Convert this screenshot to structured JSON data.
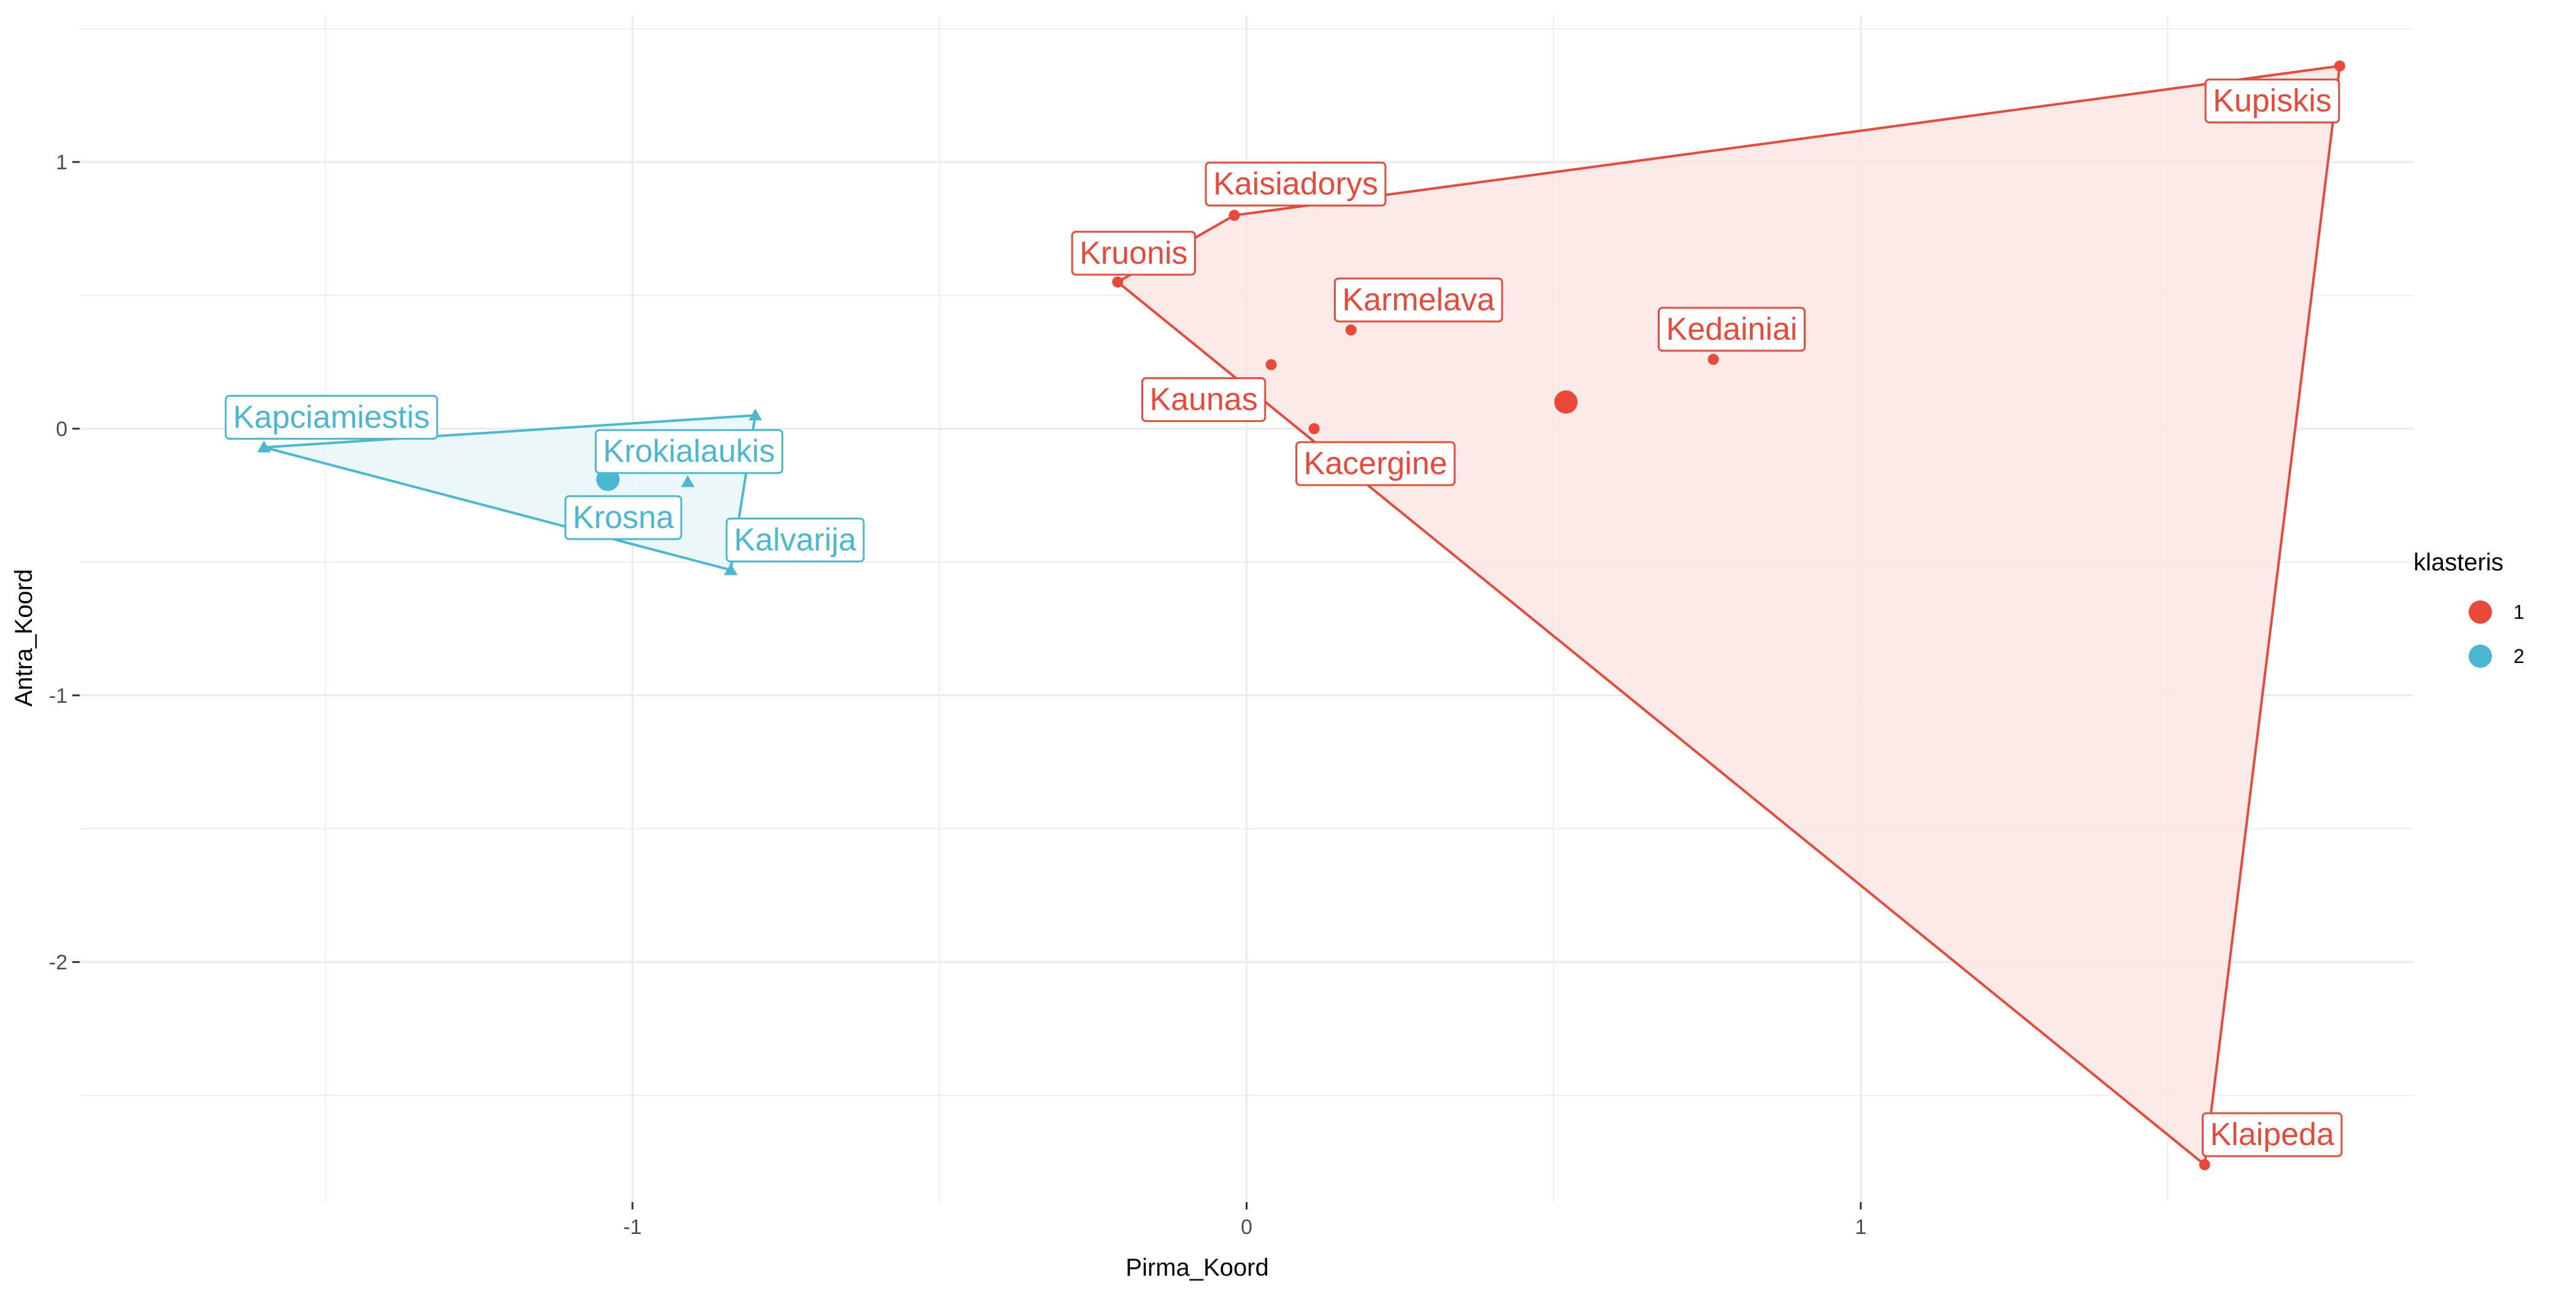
{
  "chart_data": {
    "type": "scatter",
    "xlabel": "Pirma_Koord",
    "ylabel": "Antra_Koord",
    "xlim": [
      -1.9,
      1.9
    ],
    "ylim": [
      -2.9,
      1.55
    ],
    "x_ticks": [
      -1,
      0,
      1
    ],
    "y_ticks": [
      -2,
      -1,
      0,
      1
    ],
    "x_tick_labels": [
      "-1",
      "0",
      "1"
    ],
    "y_tick_labels": [
      "-2",
      "-1",
      "0",
      "1"
    ],
    "legend": {
      "title": "klasteris",
      "position": "right",
      "entries": [
        {
          "label": "1",
          "color": "#E8493A"
        },
        {
          "label": "2",
          "color": "#4AB8D1"
        }
      ]
    },
    "series": [
      {
        "name": "1",
        "color": "#E8493A",
        "fill": "#FBE6E4",
        "marker": "circle",
        "centroid": {
          "x": 0.52,
          "y": 0.1
        },
        "hull": [
          "Kruonis",
          "Kaisiadorys",
          "Kupiskis",
          "Klaipeda"
        ],
        "points": [
          {
            "label": "Kaisiadorys",
            "x": -0.02,
            "y": 0.8
          },
          {
            "label": "Kruonis",
            "x": -0.21,
            "y": 0.55
          },
          {
            "label": "Karmelava",
            "x": 0.17,
            "y": 0.37
          },
          {
            "label": "Kedainiai",
            "x": 0.76,
            "y": 0.26
          },
          {
            "label": "Kaunas",
            "x": 0.04,
            "y": 0.24
          },
          {
            "label": "Kacergine",
            "x": 0.11,
            "y": 0.0
          },
          {
            "label": "Kupiskis",
            "x": 1.78,
            "y": 1.36
          },
          {
            "label": "Klaipeda",
            "x": 1.56,
            "y": -2.76
          }
        ]
      },
      {
        "name": "2",
        "color": "#4AB8D1",
        "fill": "#E9F6F9",
        "marker": "triangle",
        "centroid": {
          "x": -1.04,
          "y": -0.19
        },
        "hull": [
          "Kapciamiestis",
          "Krokialaukis-top",
          "Kalvarija"
        ],
        "points": [
          {
            "label": "Kapciamiestis",
            "x": -1.6,
            "y": -0.07
          },
          {
            "label": "Krokialaukis",
            "x": -0.8,
            "y": 0.05
          },
          {
            "label": "Krosna",
            "x": -0.91,
            "y": -0.2
          },
          {
            "label": "Kalvarija",
            "x": -0.84,
            "y": -0.53
          }
        ]
      }
    ]
  }
}
